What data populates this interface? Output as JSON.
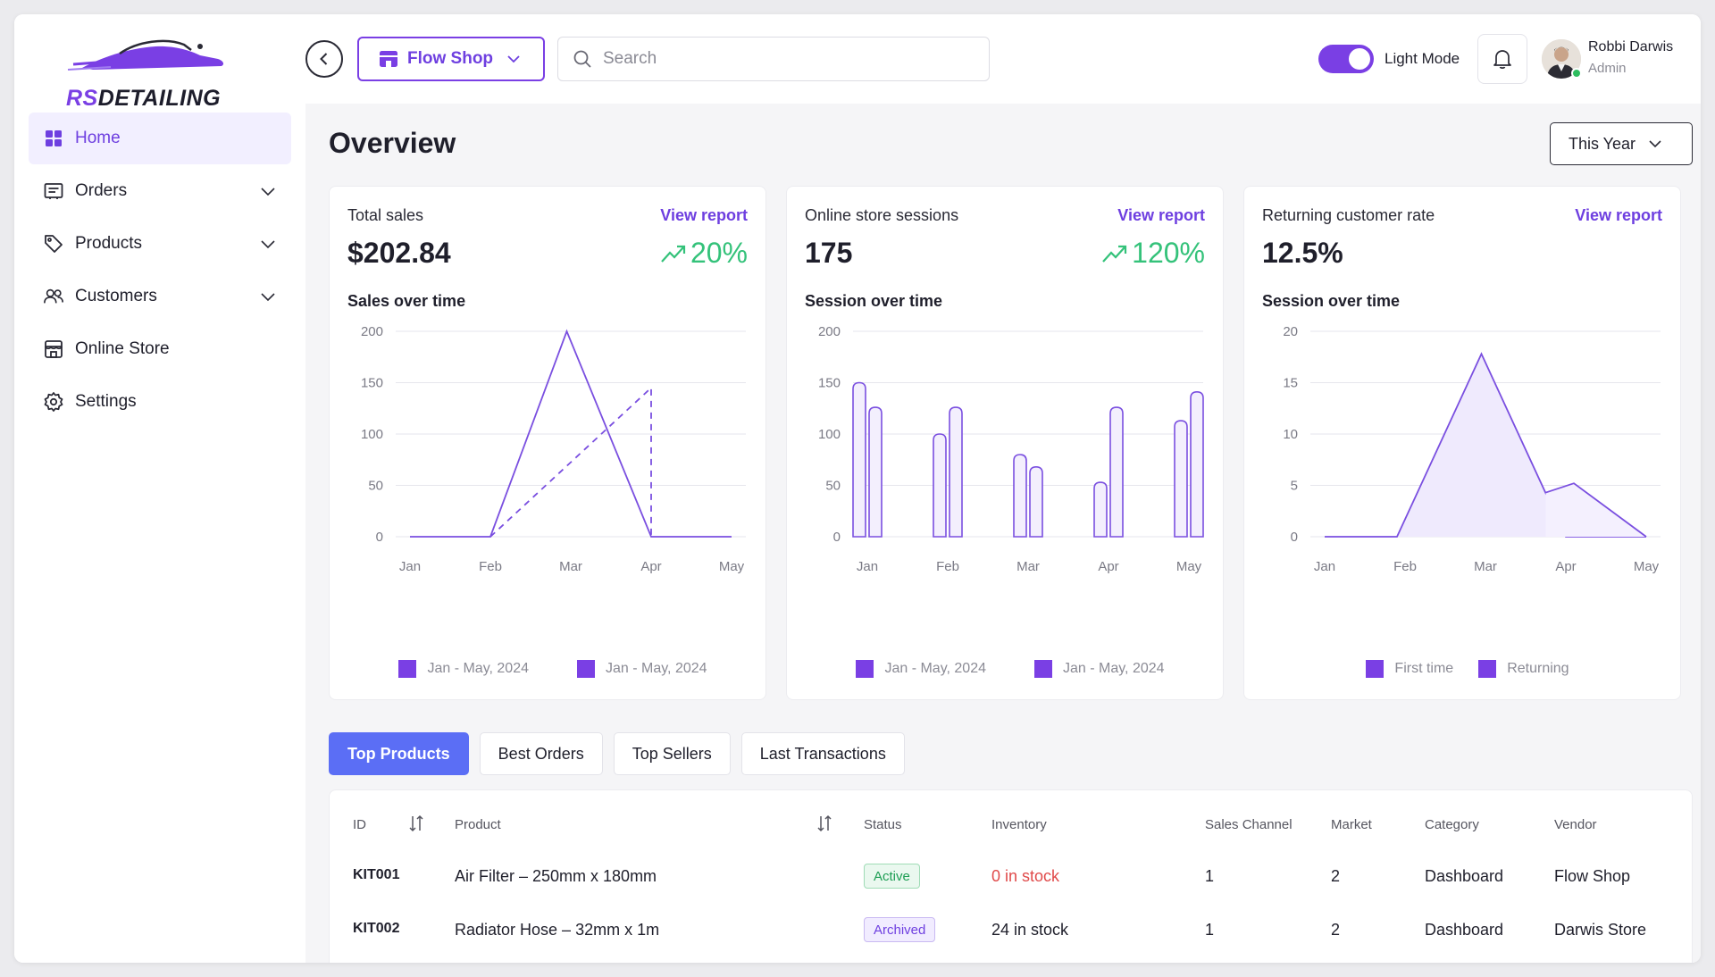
{
  "brand": {
    "logo_rs": "RS",
    "logo_rest": "DETAILING"
  },
  "sidebar": {
    "items": [
      {
        "label": "Home",
        "icon": "grid-icon",
        "active": true
      },
      {
        "label": "Orders",
        "icon": "receipt-icon",
        "expandable": true
      },
      {
        "label": "Products",
        "icon": "tag-icon",
        "expandable": true
      },
      {
        "label": "Customers",
        "icon": "users-icon",
        "expandable": true
      },
      {
        "label": "Online Store",
        "icon": "store-icon"
      },
      {
        "label": "Settings",
        "icon": "gear-icon"
      }
    ]
  },
  "topbar": {
    "shop_label": "Flow Shop",
    "search_placeholder": "Search",
    "mode_label": "Light Mode",
    "mode_on": true,
    "user_name": "Robbi Darwis",
    "user_role": "Admin"
  },
  "main": {
    "title": "Overview",
    "period": "This Year"
  },
  "cards": [
    {
      "title": "Total sales",
      "link": "View report",
      "value": "$202.84",
      "trend": "20%",
      "subtitle": "Sales over time"
    },
    {
      "title": "Online store sessions",
      "link": "View report",
      "value": "175",
      "trend": "120%",
      "subtitle": "Session over time"
    },
    {
      "title": "Returning customer rate",
      "link": "View report",
      "value": "12.5%",
      "trend": "",
      "subtitle": "Session over time"
    }
  ],
  "chart_data": [
    {
      "type": "line",
      "title": "Sales over time",
      "categories": [
        "Jan",
        "Feb",
        "Mar",
        "Apr",
        "May"
      ],
      "ylim": [
        0,
        200
      ],
      "yticks": [
        0,
        50,
        100,
        150,
        200
      ],
      "grid": true,
      "legend_position": "bottom",
      "series": [
        {
          "name": "Jan - May, 2024",
          "style": "solid",
          "x": [
            0,
            1,
            1.95,
            3,
            4
          ],
          "values": [
            0,
            0,
            200,
            0,
            0
          ]
        },
        {
          "name": "Jan - May, 2024",
          "style": "dashed",
          "x": [
            1,
            3,
            3
          ],
          "values": [
            0,
            145,
            0
          ]
        }
      ]
    },
    {
      "type": "bar",
      "title": "Session over time",
      "categories": [
        "Jan",
        "Feb",
        "Mar",
        "Apr",
        "May"
      ],
      "ylim": [
        0,
        200
      ],
      "yticks": [
        0,
        50,
        100,
        150,
        200
      ],
      "grid": true,
      "legend_position": "bottom",
      "series": [
        {
          "name": "Jan - May, 2024",
          "values": [
            150,
            100,
            80,
            53,
            113
          ]
        },
        {
          "name": "Jan - May, 2024",
          "values": [
            126,
            126,
            68,
            126,
            141
          ]
        }
      ]
    },
    {
      "type": "area",
      "title": "Session over time",
      "categories": [
        "Jan",
        "Feb",
        "Mar",
        "Apr",
        "May"
      ],
      "ylim": [
        0,
        20
      ],
      "yticks": [
        0,
        5,
        10,
        15,
        20
      ],
      "grid": true,
      "legend_position": "bottom",
      "series": [
        {
          "name": "First time",
          "x": [
            0,
            0.9,
            1.95,
            3,
            4
          ],
          "values": [
            0,
            0,
            17.8,
            0,
            0
          ]
        },
        {
          "name": "Returning",
          "x": [
            2.75,
            3.1,
            4
          ],
          "values": [
            4.3,
            5.2,
            0
          ]
        }
      ]
    }
  ],
  "tabs": [
    {
      "label": "Top Products",
      "active": true
    },
    {
      "label": "Best Orders"
    },
    {
      "label": "Top Sellers"
    },
    {
      "label": "Last Transactions"
    }
  ],
  "table": {
    "headers": [
      "ID",
      "Product",
      "Status",
      "Inventory",
      "Sales Channel",
      "Market",
      "Category",
      "Vendor"
    ],
    "rows": [
      {
        "id": "KIT001",
        "product": "Air Filter – 250mm x 180mm",
        "status": "Active",
        "inventory": "0 in stock",
        "channel": "1",
        "market": "2",
        "category": "Dashboard",
        "vendor": "Flow Shop"
      },
      {
        "id": "KIT002",
        "product": "Radiator Hose – 32mm x 1m",
        "status": "Archived",
        "inventory": "24 in stock",
        "channel": "1",
        "market": "2",
        "category": "Dashboard",
        "vendor": "Darwis Store"
      }
    ]
  },
  "colors": {
    "accent": "#7a3fe4",
    "tab_active": "#5b6ef5",
    "trend_up": "#34c27a",
    "out_of_stock": "#e04a4a"
  }
}
